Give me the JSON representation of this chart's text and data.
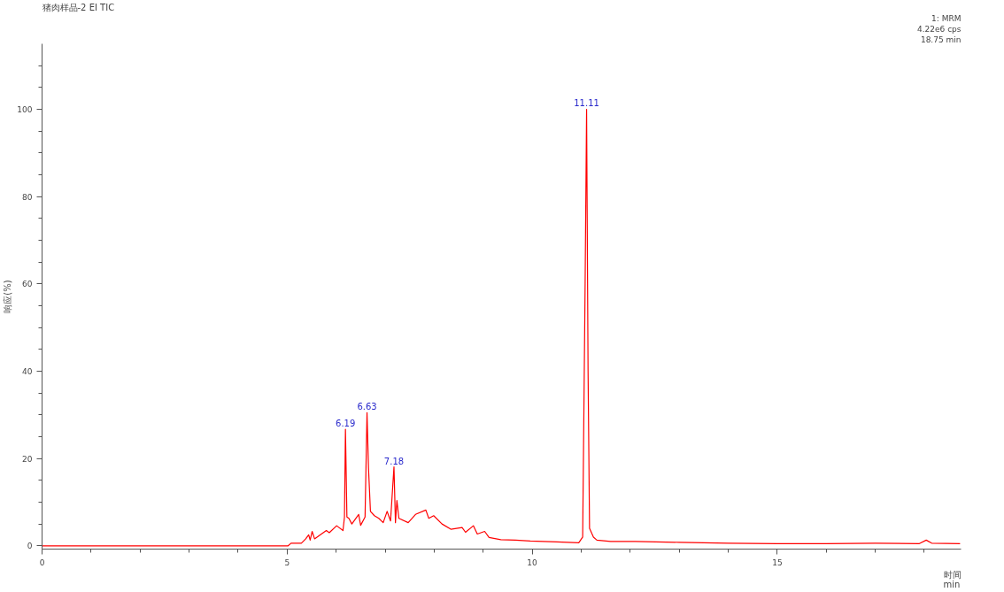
{
  "chart_data": {
    "type": "line",
    "title": "猪肉样品-2 EI TIC",
    "xlabel": "时间\nmin",
    "ylabel": "响应(%)",
    "x": [
      0,
      5.0,
      5.02,
      5.08,
      5.29,
      5.38,
      5.44,
      5.47,
      5.51,
      5.56,
      5.8,
      5.86,
      6.01,
      6.14,
      6.17,
      6.19,
      6.22,
      6.26,
      6.32,
      6.46,
      6.5,
      6.59,
      6.63,
      6.66,
      6.7,
      6.78,
      6.87,
      6.96,
      7.04,
      7.11,
      7.18,
      7.21,
      7.24,
      7.28,
      7.47,
      7.62,
      7.83,
      7.89,
      7.99,
      8.16,
      8.34,
      8.57,
      8.64,
      8.8,
      8.88,
      9.03,
      9.12,
      9.36,
      9.66,
      9.96,
      10.5,
      10.95,
      11.03,
      11.08,
      11.11,
      11.14,
      11.17,
      11.25,
      11.32,
      11.6,
      12.1,
      13,
      14,
      15,
      16,
      17,
      17.9,
      18.04,
      18.15,
      18.73
    ],
    "series": [
      {
        "color": "#ff0000",
        "values": [
          0,
          0,
          0,
          0.6,
          0.6,
          1.6,
          2.5,
          1.3,
          3.3,
          1.6,
          3.5,
          3.0,
          4.6,
          3.5,
          6.6,
          26.7,
          6.6,
          6.3,
          5.0,
          7.2,
          4.7,
          6.6,
          30.5,
          17.9,
          7.9,
          6.9,
          6.3,
          5.3,
          7.9,
          5.7,
          18.1,
          5.3,
          10.4,
          6.3,
          5.3,
          7.2,
          8.2,
          6.3,
          6.9,
          5.0,
          3.8,
          4.2,
          3.1,
          4.6,
          2.7,
          3.3,
          1.9,
          1.4,
          1.3,
          1.1,
          0.9,
          0.7,
          2,
          60,
          100,
          40,
          4.0,
          2,
          1.3,
          1.0,
          1.0,
          0.8,
          0.6,
          0.5,
          0.5,
          0.6,
          0.5,
          1.3,
          0.6,
          0.5
        ]
      }
    ],
    "xlim": [
      0,
      18.75
    ],
    "ylim": [
      -0.75,
      115
    ],
    "xticks": [
      0,
      {
        "value": 1,
        "label": null
      },
      {
        "value": 2,
        "label": null
      },
      {
        "value": 3,
        "label": null
      },
      {
        "value": 4,
        "label": null
      },
      5,
      {
        "value": 6,
        "label": null
      },
      {
        "value": 7,
        "label": null
      },
      {
        "value": 8,
        "label": null
      },
      {
        "value": 9,
        "label": null
      },
      10,
      {
        "value": 11,
        "label": null
      },
      {
        "value": 12,
        "label": null
      },
      {
        "value": 13,
        "label": null
      },
      {
        "value": 14,
        "label": null
      },
      15,
      {
        "value": 16,
        "label": null
      },
      {
        "value": 17,
        "label": null
      },
      {
        "value": 18,
        "label": null
      }
    ],
    "yticks": [
      0,
      {
        "value": 5,
        "label": null
      },
      {
        "value": 10,
        "label": null
      },
      {
        "value": 15,
        "label": null
      },
      20,
      {
        "value": 25,
        "label": null
      },
      {
        "value": 30,
        "label": null
      },
      {
        "value": 35,
        "label": null
      },
      40,
      {
        "value": 45,
        "label": null
      },
      {
        "value": 50,
        "label": null
      },
      {
        "value": 55,
        "label": null
      },
      60,
      {
        "value": 65,
        "label": null
      },
      {
        "value": 70,
        "label": null
      },
      {
        "value": 75,
        "label": null
      },
      80,
      {
        "value": 85,
        "label": null
      },
      {
        "value": 90,
        "label": null
      },
      {
        "value": 95,
        "label": null
      },
      100,
      {
        "value": 105,
        "label": null
      },
      {
        "value": 110,
        "label": null
      }
    ],
    "grid": false,
    "marker": "none",
    "line_style": "solid",
    "annotations": [
      {
        "text": "6.19",
        "x": 6.19,
        "y": 26.7
      },
      {
        "text": "6.63",
        "x": 6.63,
        "y": 30.5
      },
      {
        "text": "7.18",
        "x": 7.18,
        "y": 18.1
      },
      {
        "text": "11.11",
        "x": 11.11,
        "y": 100
      },
      "1: MRM",
      "4.22e6 cps",
      "18.75 min"
    ]
  }
}
